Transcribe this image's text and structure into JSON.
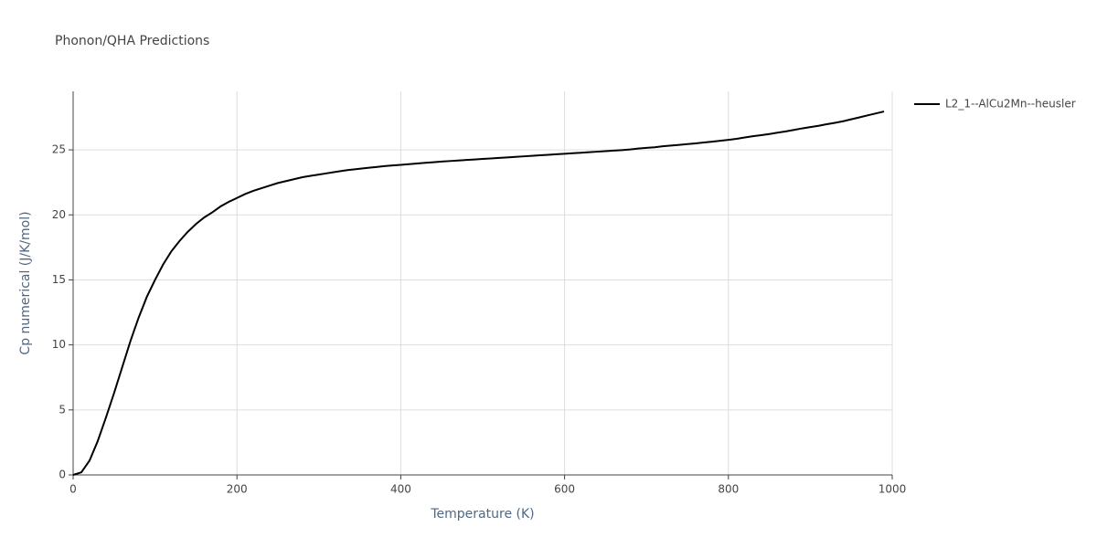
{
  "chart_data": {
    "type": "line",
    "title": "Phonon/QHA Predictions",
    "x_label": "Temperature (K)",
    "y_label": "Cp numerical (J/K/mol)",
    "x": [
      0,
      10,
      20,
      30,
      40,
      50,
      60,
      70,
      80,
      90,
      100,
      110,
      120,
      130,
      140,
      150,
      160,
      170,
      180,
      190,
      200,
      210,
      220,
      230,
      240,
      250,
      260,
      270,
      280,
      290,
      300,
      310,
      320,
      330,
      340,
      350,
      360,
      370,
      380,
      390,
      400,
      410,
      420,
      430,
      440,
      450,
      460,
      470,
      480,
      490,
      500,
      510,
      520,
      530,
      540,
      550,
      560,
      570,
      580,
      590,
      600,
      610,
      620,
      630,
      640,
      650,
      660,
      670,
      680,
      690,
      700,
      710,
      720,
      730,
      740,
      750,
      760,
      770,
      780,
      790,
      800,
      810,
      820,
      830,
      840,
      850,
      860,
      870,
      880,
      890,
      900,
      910,
      920,
      930,
      940,
      950,
      960,
      970,
      980,
      990
    ],
    "series": [
      {
        "name": "L2_1--AlCu2Mn--heusler",
        "color": "#000000",
        "values": [
          0,
          0.2,
          1.1,
          2.6,
          4.4,
          6.3,
          8.3,
          10.3,
          12.1,
          13.7,
          15.0,
          16.2,
          17.2,
          18.0,
          18.7,
          19.3,
          19.8,
          20.2,
          20.65,
          21.0,
          21.3,
          21.6,
          21.85,
          22.05,
          22.25,
          22.45,
          22.6,
          22.75,
          22.9,
          23.0,
          23.1,
          23.2,
          23.3,
          23.4,
          23.48,
          23.55,
          23.62,
          23.68,
          23.75,
          23.8,
          23.85,
          23.9,
          23.95,
          24.0,
          24.05,
          24.1,
          24.14,
          24.18,
          24.22,
          24.26,
          24.3,
          24.34,
          24.38,
          24.42,
          24.46,
          24.5,
          24.54,
          24.58,
          24.62,
          24.66,
          24.7,
          24.74,
          24.78,
          24.82,
          24.86,
          24.9,
          24.94,
          24.98,
          25.03,
          25.1,
          25.15,
          25.2,
          25.28,
          25.33,
          25.38,
          25.44,
          25.5,
          25.57,
          25.63,
          25.7,
          25.77,
          25.85,
          25.95,
          26.05,
          26.13,
          26.22,
          26.32,
          26.42,
          26.53,
          26.65,
          26.75,
          26.85,
          26.97,
          27.08,
          27.2,
          27.35,
          27.5,
          27.65,
          27.8,
          27.95
        ]
      }
    ],
    "xlim": [
      0,
      1000
    ],
    "xticks": [
      0,
      200,
      400,
      600,
      800,
      1000
    ],
    "ylim": [
      0,
      29.5
    ],
    "yticks": [
      0,
      5,
      10,
      15,
      20,
      25
    ],
    "grid": true,
    "legend": "right"
  }
}
